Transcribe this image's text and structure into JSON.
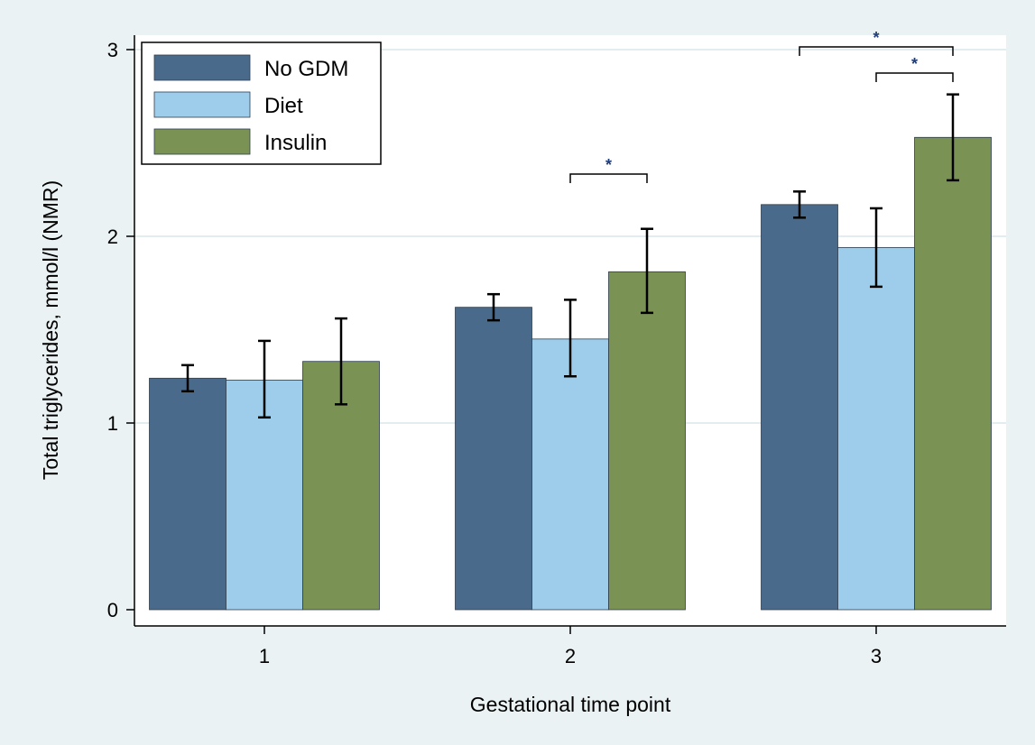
{
  "chart_data": {
    "type": "bar",
    "xlabel": "Gestational time point",
    "ylabel": "Total triglycerides, mmol/l (NMR)",
    "categories": [
      "1",
      "2",
      "3"
    ],
    "ylim": [
      0,
      3.1
    ],
    "yticks": [
      0,
      1,
      2,
      3
    ],
    "grid": "horizontal",
    "legend_position": "top-left",
    "series": [
      {
        "name": "No GDM",
        "color": "#4a6a8c",
        "values": [
          1.24,
          1.62,
          2.17
        ],
        "ci_low": [
          1.17,
          1.55,
          2.1
        ],
        "ci_high": [
          1.31,
          1.69,
          2.24
        ]
      },
      {
        "name": "Diet",
        "color": "#9dcdea",
        "values": [
          1.23,
          1.45,
          1.94
        ],
        "ci_low": [
          1.03,
          1.25,
          1.73
        ],
        "ci_high": [
          1.44,
          1.66,
          2.15
        ]
      },
      {
        "name": "Insulin",
        "color": "#7a9254",
        "values": [
          1.33,
          1.81,
          2.53
        ],
        "ci_low": [
          1.1,
          1.59,
          2.3
        ],
        "ci_high": [
          1.56,
          2.04,
          2.76
        ]
      }
    ],
    "significance": [
      {
        "category": 1,
        "from_series": 1,
        "to_series": 2,
        "label": "*"
      },
      {
        "category": 2,
        "from_series": 0,
        "to_series": 2,
        "label": "*"
      },
      {
        "category": 2,
        "from_series": 1,
        "to_series": 2,
        "label": "*"
      }
    ]
  }
}
